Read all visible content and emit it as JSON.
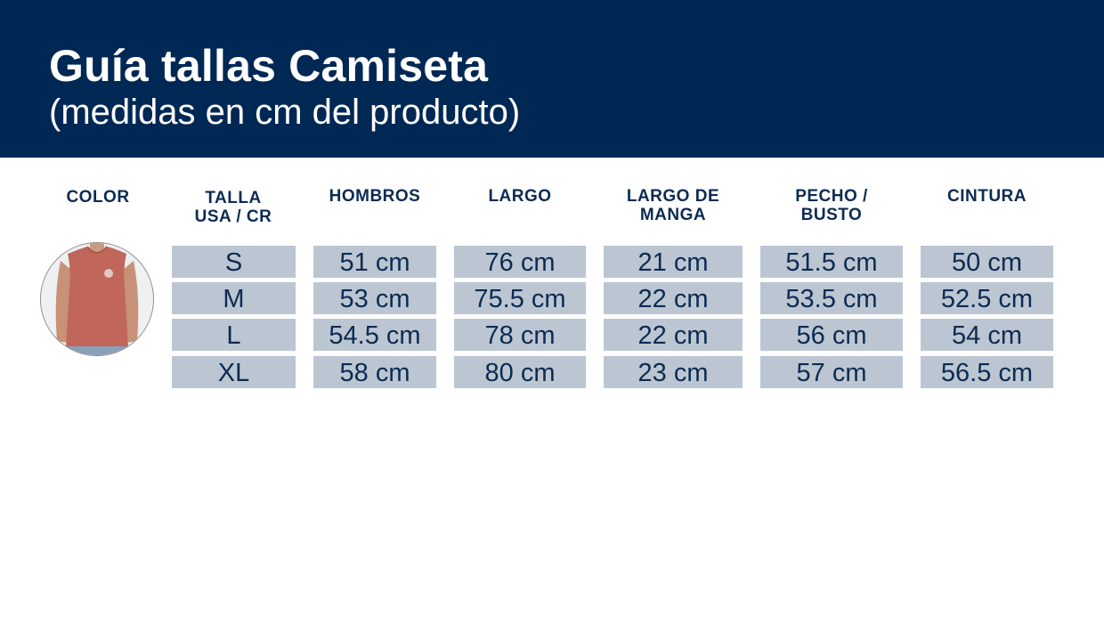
{
  "header": {
    "title": "Guía tallas Camiseta",
    "subtitle": "(medidas en cm del producto)"
  },
  "columns": {
    "color": "COLOR",
    "talla": [
      "TALLA",
      "USA / CR"
    ],
    "hombros": "HOMBROS",
    "largo": "LARGO",
    "manga": [
      "LARGO DE",
      "MANGA"
    ],
    "pecho": [
      "PECHO /",
      "BUSTO"
    ],
    "cintura": "CINTURA"
  },
  "rows": [
    {
      "talla": "S",
      "hombros": "51 cm",
      "largo": "76 cm",
      "manga": "21 cm",
      "pecho": "51.5 cm",
      "cintura": "50 cm"
    },
    {
      "talla": "M",
      "hombros": "53 cm",
      "largo": "75.5 cm",
      "manga": "22 cm",
      "pecho": "53.5 cm",
      "cintura": "52.5 cm"
    },
    {
      "talla": "L",
      "hombros": "54.5 cm",
      "largo": "78 cm",
      "manga": "22 cm",
      "pecho": "56 cm",
      "cintura": "54 cm"
    },
    {
      "talla": "XL",
      "hombros": "58 cm",
      "largo": "80 cm",
      "manga": "23 cm",
      "pecho": "57 cm",
      "cintura": "56.5 cm"
    }
  ],
  "product_image": {
    "icon": "sleeveless-shirt-photo",
    "shirt_color": "#c0665a"
  },
  "colors": {
    "banner": "#002855",
    "header_text": "#0c2b52",
    "cell_bg": "#bcc6d2"
  }
}
